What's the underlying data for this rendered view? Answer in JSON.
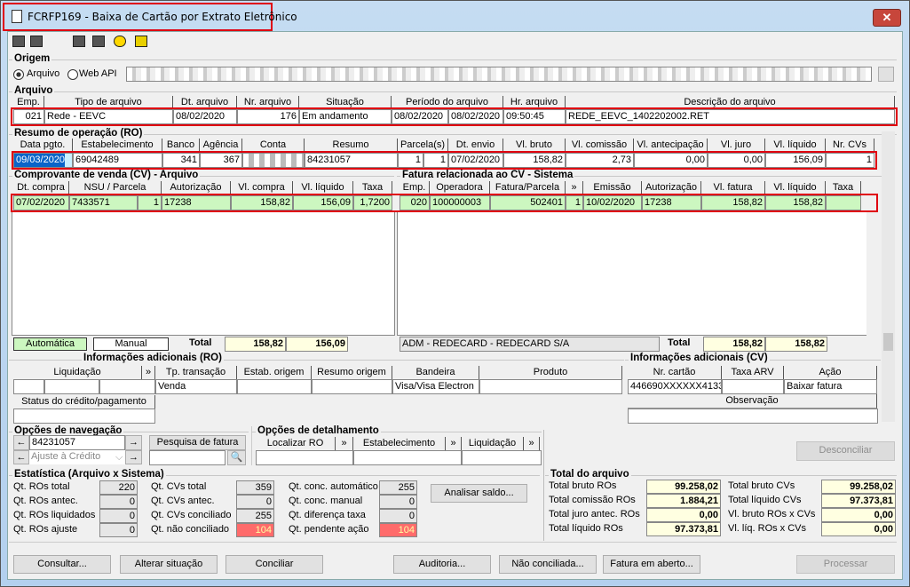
{
  "window": {
    "title": "FCRFP169 - Baixa de Cartão por Extrato Eletrônico",
    "close_glyph": "✕"
  },
  "toolbar": {
    "icons": [
      "expand-icon",
      "restore-icon",
      "printer-icon",
      "calendar-icon",
      "help-icon",
      "exit-door-icon"
    ]
  },
  "origem": {
    "label": "Origem",
    "radio_arquivo": "Arquivo",
    "radio_webapi": "Web API",
    "selected": "Arquivo"
  },
  "arquivo": {
    "label": "Arquivo",
    "headers": [
      "Emp.",
      "Tipo de arquivo",
      "Dt. arquivo",
      "Nr. arquivo",
      "Situação",
      "Período do arquivo",
      "Hr. arquivo",
      "Descrição do arquivo"
    ],
    "row": [
      "021",
      "Rede - EEVC",
      "08/02/2020",
      "176",
      "Em andamento",
      "08/02/2020",
      "08/02/2020",
      "09:50:45",
      "REDE_EEVC_1402202002.RET"
    ]
  },
  "ro": {
    "label": "Resumo de operação (RO)",
    "headers": [
      "Data pgto.",
      "Estabelecimento",
      "Banco",
      "Agência",
      "Conta",
      "Resumo",
      "Parcela(s)",
      "Dt. envio",
      "Vl. bruto",
      "Vl. comissão",
      "Vl. antecipação",
      "Vl. juro",
      "Vl. líquido",
      "Nr. CVs"
    ],
    "row": [
      "09/03/2020",
      "69042489",
      "341",
      "367",
      "",
      "84231057",
      "1",
      "1",
      "07/02/2020",
      "158,82",
      "2,73",
      "0,00",
      "0,00",
      "156,09",
      "1"
    ]
  },
  "cv": {
    "label": "Comprovante de venda (CV) - Arquivo",
    "headers": [
      "Dt. compra",
      "NSU / Parcela",
      "Autorização",
      "Vl. compra",
      "Vl. líquido",
      "Taxa"
    ],
    "row": [
      "07/02/2020",
      "7433571",
      "1",
      "17238",
      "158,82",
      "156,09",
      "1,7200"
    ],
    "mode_auto": "Automática",
    "mode_manual": "Manual",
    "total_label": "Total",
    "totals": [
      "158,82",
      "156,09"
    ]
  },
  "fatura": {
    "label": "Fatura relacionada ao CV - Sistema",
    "headers": [
      "Emp.",
      "Operadora",
      "Fatura/Parcela",
      "»",
      "Emissão",
      "Autorização",
      "Vl. fatura",
      "Vl. líquido",
      "Taxa"
    ],
    "row": [
      "020",
      "100000003",
      "502401",
      "1",
      "10/02/2020",
      "17238",
      "158,82",
      "158,82",
      ""
    ],
    "adm": "ADM - REDECARD - REDECARD S/A",
    "total_label": "Total",
    "totals": [
      "158,82",
      "158,82"
    ]
  },
  "info_ro": {
    "label": "Informações adicionais (RO)",
    "headers": [
      "Liquidação",
      "»",
      "Tp. transação",
      "Estab. origem",
      "Resumo origem",
      "Bandeira",
      "Produto"
    ],
    "row": [
      "",
      "",
      "",
      "Venda",
      "",
      "",
      "Visa/Visa Electron",
      ""
    ],
    "status_header": "Status do crédito/pagamento",
    "status_value": ""
  },
  "info_cv": {
    "label": "Informações adicionais (CV)",
    "headers": [
      "Nr. cartão",
      "Taxa ARV",
      "Ação"
    ],
    "row": [
      "446690XXXXXX4133",
      "",
      "Baixar fatura"
    ],
    "obs_header": "Observação",
    "obs_value": ""
  },
  "navegacao": {
    "label": "Opções de navegação",
    "resumo_value": "84231057",
    "tipo_value": "Ajuste à Crédito",
    "pesquisa_label": "Pesquisa de fatura",
    "pesquisa_value": ""
  },
  "detalhamento": {
    "label": "Opções de detalhamento",
    "headers": [
      "Localizar RO",
      "»",
      "Estabelecimento",
      "»",
      "Liquidação",
      "»"
    ]
  },
  "estatistica": {
    "label": "Estatística (Arquivo x Sistema)",
    "items": [
      {
        "label": "Qt. ROs total",
        "value": "220"
      },
      {
        "label": "Qt. ROs antec.",
        "value": "0"
      },
      {
        "label": "Qt. ROs liquidados",
        "value": "0"
      },
      {
        "label": "Qt. ROs ajuste",
        "value": "0"
      },
      {
        "label": "Qt. CVs total",
        "value": "359"
      },
      {
        "label": "Qt. CVs antec.",
        "value": "0"
      },
      {
        "label": "Qt. CVs conciliado",
        "value": "255"
      },
      {
        "label": "Qt. não conciliado",
        "value": "104",
        "alert": true
      },
      {
        "label": "Qt. conc. automático",
        "value": "255"
      },
      {
        "label": "Qt. conc. manual",
        "value": "0"
      },
      {
        "label": "Qt. diferença taxa",
        "value": "0"
      },
      {
        "label": "Qt. pendente ação",
        "value": "104",
        "alert": true
      }
    ],
    "analisar_label": "Analisar saldo..."
  },
  "total_arquivo": {
    "label": "Total do arquivo",
    "items": [
      {
        "label": "Total bruto ROs",
        "value": "99.258,02"
      },
      {
        "label": "Total comissão ROs",
        "value": "1.884,21"
      },
      {
        "label": "Total juro antec. ROs",
        "value": "0,00"
      },
      {
        "label": "Total líquido ROs",
        "value": "97.373,81"
      },
      {
        "label": "Total bruto CVs",
        "value": "99.258,02"
      },
      {
        "label": "Total líquido CVs",
        "value": "97.373,81"
      },
      {
        "label": "Vl. bruto ROs x CVs",
        "value": "0,00"
      },
      {
        "label": "Vl. líq. ROs x CVs",
        "value": "0,00"
      }
    ]
  },
  "buttons": {
    "desconciliar": "Desconciliar",
    "consultar": "Consultar...",
    "alterar": "Alterar situação",
    "conciliar": "Conciliar",
    "auditoria": "Auditoria...",
    "nao_conciliada": "Não conciliada...",
    "fatura_aberto": "Fatura em aberto...",
    "processar": "Processar"
  },
  "colors": {
    "highlight_red": "#e00010",
    "row_green": "#ccf7c0",
    "total_yellow": "#ffffe1",
    "alert_red": "#ff6b6b"
  }
}
